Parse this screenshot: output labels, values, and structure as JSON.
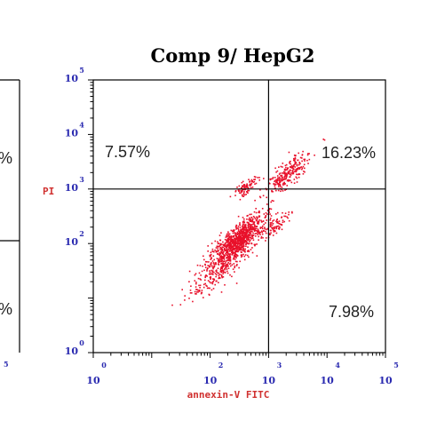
{
  "chart_data": {
    "type": "scatter",
    "title": "Comp 9/ HepG2",
    "xlabel": "annexin-V FITC",
    "ylabel": "PI",
    "scale": "log",
    "xlim": [
      1,
      100000
    ],
    "ylim": [
      1,
      100000
    ],
    "x_ticks": [
      {
        "base": "10",
        "exp": "0",
        "value": 1
      },
      {
        "base": "10",
        "exp": "2",
        "value": 100
      },
      {
        "base": "10",
        "exp": "3",
        "value": 1000
      },
      {
        "base": "10",
        "exp": "4",
        "value": 10000
      },
      {
        "base": "10",
        "exp": "5",
        "value": 100000
      }
    ],
    "y_ticks": [
      {
        "base": "10",
        "exp": "0",
        "value": 1
      },
      {
        "base": "10",
        "exp": "2",
        "value": 100
      },
      {
        "base": "10",
        "exp": "3",
        "value": 1000
      },
      {
        "base": "10",
        "exp": "4",
        "value": 10000
      },
      {
        "base": "10",
        "exp": "5",
        "value": 100000
      }
    ],
    "gate": {
      "x": 1000,
      "y": 1000
    },
    "quadrants": [
      {
        "name": "upper-left",
        "percent": "7.57%"
      },
      {
        "name": "upper-right",
        "percent": "16.23%"
      },
      {
        "name": "lower-right",
        "percent": "7.98%"
      }
    ],
    "point_color": "#e8102a",
    "clusters": [
      {
        "x": 300,
        "y": 120,
        "spread": 0.22,
        "n": 900
      },
      {
        "x": 140,
        "y": 35,
        "spread": 0.25,
        "n": 260
      },
      {
        "x": 2100,
        "y": 1900,
        "spread": 0.18,
        "n": 260
      },
      {
        "x": 400,
        "y": 1100,
        "spread": 0.1,
        "n": 90
      },
      {
        "x": 1300,
        "y": 220,
        "spread": 0.12,
        "n": 80
      }
    ],
    "left_panel_partial": {
      "percent_top": "%",
      "percent_bottom": "%",
      "tick": {
        "base": "",
        "exp": "5"
      }
    }
  }
}
